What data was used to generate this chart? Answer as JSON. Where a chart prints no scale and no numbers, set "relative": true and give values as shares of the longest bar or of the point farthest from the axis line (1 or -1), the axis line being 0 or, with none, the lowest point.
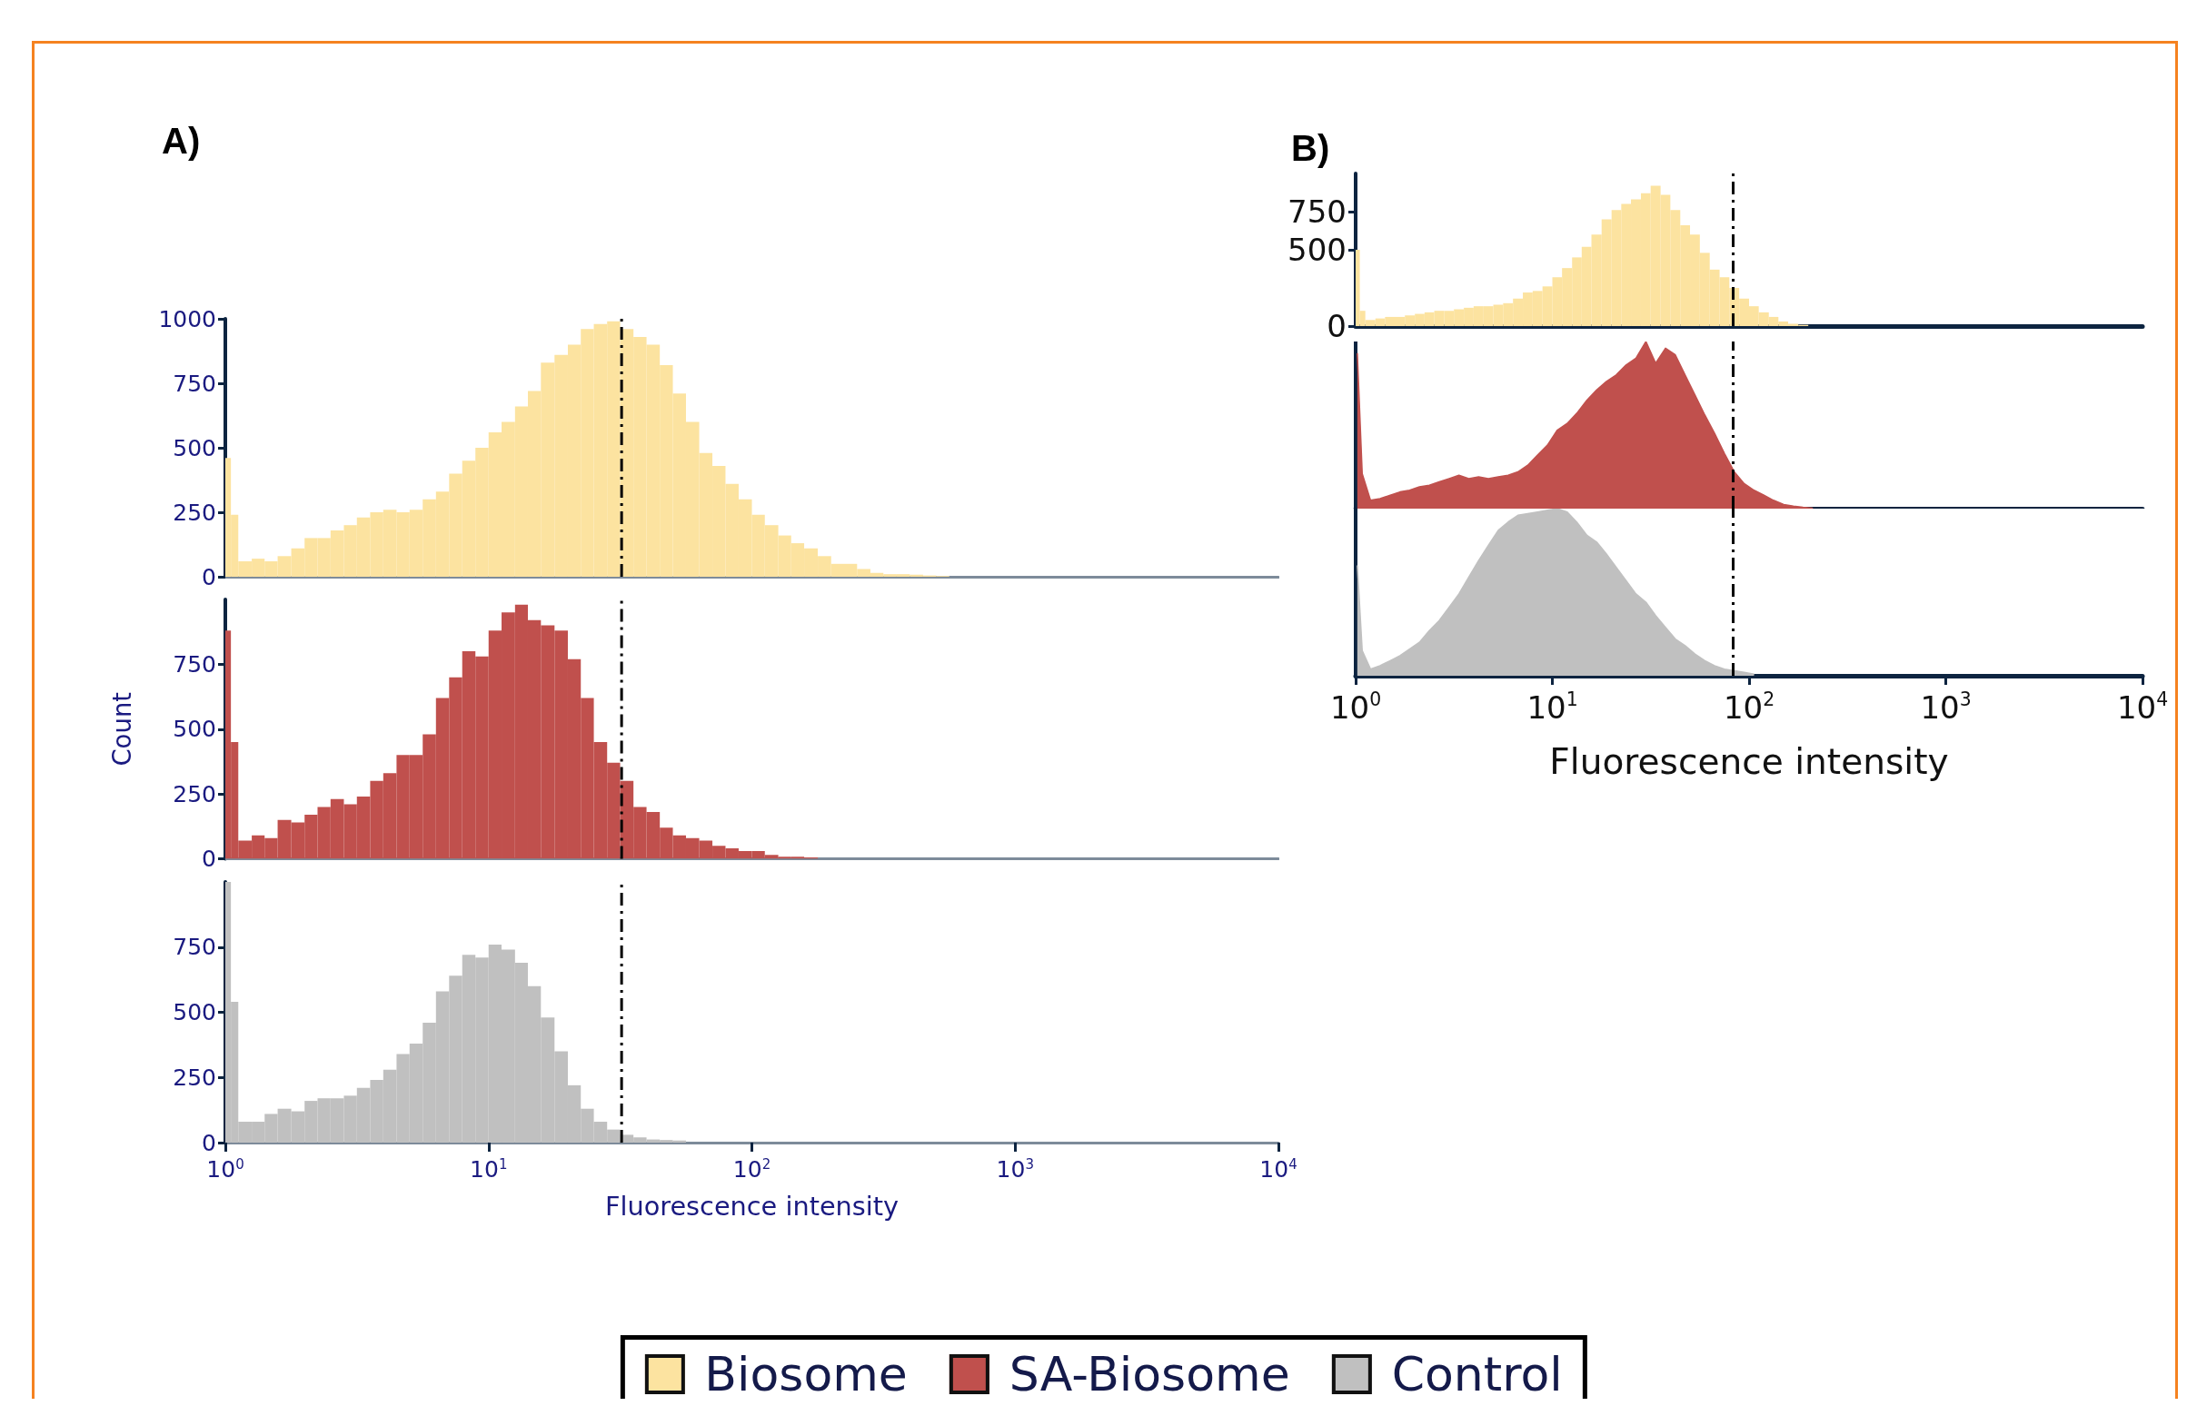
{
  "chart_data": [
    {
      "type": "histogram",
      "title": "A)",
      "log": "x",
      "grid": false,
      "legend": "bottom",
      "tick_labels": "y",
      "xlim": [
        1,
        10000
      ],
      "ylim": [
        0,
        1000
      ],
      "yticks": [
        0,
        250,
        500,
        750,
        1000
      ],
      "bins": [
        1,
        1.05,
        1.12,
        1.26,
        1.41,
        1.58,
        1.78,
        2,
        2.24,
        2.51,
        2.82,
        3.16,
        3.55,
        3.98,
        4.47,
        5.01,
        5.62,
        6.31,
        7.08,
        7.94,
        8.91,
        10,
        11.2,
        12.6,
        14.1,
        15.8,
        17.8,
        20,
        22.4,
        25.1,
        28.2,
        31.6,
        35.5,
        39.8,
        44.7,
        50.1,
        56.2,
        63.1,
        70.8,
        79.4,
        89.1,
        100,
        112,
        126,
        141,
        158,
        178,
        200,
        224,
        251,
        282,
        316,
        355,
        398,
        447,
        501,
        562
      ],
      "series": [
        {
          "name": "Biosome",
          "color": "#fce3a0",
          "values": [
            460,
            240,
            60,
            70,
            60,
            80,
            110,
            150,
            150,
            180,
            200,
            230,
            250,
            260,
            250,
            260,
            300,
            330,
            400,
            450,
            500,
            560,
            600,
            660,
            720,
            830,
            860,
            900,
            960,
            980,
            990,
            960,
            930,
            900,
            820,
            710,
            600,
            480,
            430,
            360,
            300,
            240,
            200,
            160,
            130,
            110,
            80,
            50,
            50,
            30,
            15,
            10,
            10,
            8,
            5,
            3
          ]
        }
      ],
      "ref_lines": [
        {
          "axis": "x",
          "value": 32,
          "color": "#000000",
          "line_style": "dashed"
        }
      ]
    },
    {
      "type": "histogram",
      "ylabel": "Count",
      "log": "x",
      "grid": false,
      "legend": "bottom",
      "tick_labels": "y",
      "xlim": [
        1,
        10000
      ],
      "ylim": [
        0,
        1000
      ],
      "yticks": [
        0,
        250,
        500,
        750
      ],
      "bins": [
        1,
        1.05,
        1.12,
        1.26,
        1.41,
        1.58,
        1.78,
        2,
        2.24,
        2.51,
        2.82,
        3.16,
        3.55,
        3.98,
        4.47,
        5.01,
        5.62,
        6.31,
        7.08,
        7.94,
        8.91,
        10,
        11.2,
        12.6,
        14.1,
        15.8,
        17.8,
        20,
        22.4,
        25.1,
        28.2,
        31.6,
        35.5,
        39.8,
        44.7,
        50.1,
        56.2,
        63.1,
        70.8,
        79.4,
        89.1,
        100,
        112,
        126,
        141,
        158,
        178
      ],
      "series": [
        {
          "name": "SA-Biosome",
          "color": "#c0504d",
          "values": [
            880,
            450,
            70,
            90,
            80,
            150,
            140,
            170,
            200,
            230,
            210,
            240,
            300,
            330,
            400,
            400,
            480,
            620,
            700,
            800,
            780,
            880,
            950,
            980,
            920,
            900,
            880,
            770,
            620,
            450,
            370,
            300,
            200,
            180,
            120,
            90,
            80,
            70,
            50,
            40,
            30,
            30,
            15,
            8,
            8,
            5
          ]
        }
      ],
      "ref_lines": [
        {
          "axis": "x",
          "value": 32,
          "color": "#000000",
          "line_style": "dashed"
        }
      ]
    },
    {
      "type": "histogram",
      "xlabel": "Fluorescence intensity",
      "log": "x",
      "grid": false,
      "legend": "bottom",
      "xlim": [
        1,
        10000
      ],
      "xticks": [
        {
          "value": 1,
          "label": "10$^{0}$"
        },
        {
          "value": 10,
          "label": "10$^{1}$"
        },
        {
          "value": 100,
          "label": "10$^{2}$"
        },
        {
          "value": 1000,
          "label": "10$^{3}$"
        },
        {
          "value": 10000,
          "label": "10$^{4}$"
        }
      ],
      "ylim": [
        0,
        1000
      ],
      "yticks": [
        0,
        250,
        500,
        750
      ],
      "bins": [
        1,
        1.05,
        1.12,
        1.26,
        1.41,
        1.58,
        1.78,
        2,
        2.24,
        2.51,
        2.82,
        3.16,
        3.55,
        3.98,
        4.47,
        5.01,
        5.62,
        6.31,
        7.08,
        7.94,
        8.91,
        10,
        11.2,
        12.6,
        14.1,
        15.8,
        17.8,
        20,
        22.4,
        25.1,
        28.2,
        31.6,
        35.5,
        39.8,
        44.7,
        50.1,
        56.2
      ],
      "series": [
        {
          "name": "Control",
          "color": "#c0c0c0",
          "values": [
            1000,
            540,
            80,
            80,
            110,
            130,
            120,
            160,
            170,
            170,
            180,
            210,
            240,
            280,
            340,
            380,
            460,
            580,
            640,
            720,
            710,
            760,
            740,
            690,
            600,
            480,
            350,
            220,
            130,
            80,
            50,
            30,
            20,
            12,
            10,
            8
          ]
        }
      ],
      "ref_lines": [
        {
          "axis": "x",
          "value": 32,
          "color": "#000000",
          "line_style": "dashed"
        }
      ]
    },
    {
      "type": "histogram",
      "title": "B)",
      "log": "x",
      "grid": false,
      "tick_labels": "y",
      "xlim": [
        1,
        10000
      ],
      "ylim": [
        0,
        1000
      ],
      "yticks": [
        0,
        500,
        750
      ],
      "bins": [
        1,
        1.05,
        1.12,
        1.26,
        1.41,
        1.58,
        1.78,
        2,
        2.24,
        2.51,
        2.82,
        3.16,
        3.55,
        3.98,
        4.47,
        5.01,
        5.62,
        6.31,
        7.08,
        7.94,
        8.91,
        10,
        11.2,
        12.6,
        14.1,
        15.8,
        17.8,
        20,
        22.4,
        25.1,
        28.2,
        31.6,
        35.5,
        39.8,
        44.7,
        50.1,
        56.2,
        63.1,
        70.8,
        79.4,
        89.1,
        100,
        112,
        126,
        141,
        158,
        178,
        200
      ],
      "series": [
        {
          "color": "#fce3a0",
          "values": [
            500,
            100,
            40,
            50,
            60,
            60,
            70,
            80,
            90,
            100,
            100,
            110,
            120,
            130,
            130,
            140,
            150,
            180,
            220,
            230,
            260,
            320,
            380,
            450,
            520,
            600,
            700,
            760,
            800,
            830,
            870,
            920,
            860,
            760,
            660,
            600,
            480,
            370,
            320,
            250,
            180,
            130,
            90,
            60,
            30,
            15,
            8
          ]
        }
      ],
      "ref_lines": [
        {
          "axis": "x",
          "value": 83,
          "color": "#000000",
          "line_style": "dashed"
        }
      ]
    },
    {
      "type": "area",
      "relative": true,
      "log": "x",
      "grid": false,
      "tick_labels": false,
      "xlim": [
        1,
        10000
      ],
      "x": [
        1.02,
        1.08,
        1.19,
        1.33,
        1.5,
        1.68,
        1.88,
        2.11,
        2.37,
        2.66,
        2.99,
        3.35,
        3.76,
        4.22,
        4.73,
        5.31,
        5.96,
        6.68,
        7.5,
        8.41,
        9.44,
        10.6,
        11.9,
        13.3,
        15,
        16.8,
        18.8,
        21.1,
        23.7,
        26.6,
        29.9,
        33.5,
        37.6,
        42.2,
        47.3,
        53.1,
        59.6,
        66.8,
        75,
        84.1,
        94.4,
        106,
        119,
        133,
        150,
        168,
        188,
        211
      ],
      "series": [
        {
          "color": "#c0504d",
          "values": [
            0.93,
            0.21,
            0.05,
            0.06,
            0.08,
            0.1,
            0.11,
            0.13,
            0.14,
            0.16,
            0.18,
            0.2,
            0.18,
            0.19,
            0.18,
            0.19,
            0.2,
            0.22,
            0.26,
            0.32,
            0.38,
            0.47,
            0.51,
            0.57,
            0.65,
            0.71,
            0.76,
            0.8,
            0.86,
            0.9,
            1,
            0.87,
            0.96,
            0.92,
            0.8,
            0.68,
            0.56,
            0.45,
            0.33,
            0.22,
            0.15,
            0.11,
            0.08,
            0.05,
            0.025,
            0.015,
            0.008,
            0.003
          ]
        }
      ],
      "ref_lines": [
        {
          "axis": "x",
          "value": 83,
          "color": "#000000",
          "line_style": "dashed"
        }
      ]
    },
    {
      "type": "area",
      "relative": true,
      "xlabel": "Fluorescence intensity",
      "log": "x",
      "grid": false,
      "tick_labels": "x",
      "xlim": [
        1,
        10000
      ],
      "xticks": [
        {
          "value": 1,
          "label": "10$^{0}$"
        },
        {
          "value": 10,
          "label": "10$^{1}$"
        },
        {
          "value": 100,
          "label": "10$^{2}$"
        },
        {
          "value": 1000,
          "label": "10$^{3}$"
        },
        {
          "value": 10000,
          "label": "10$^{4}$"
        }
      ],
      "x": [
        1.02,
        1.08,
        1.19,
        1.33,
        1.5,
        1.68,
        1.88,
        2.11,
        2.37,
        2.66,
        2.99,
        3.35,
        3.76,
        4.22,
        4.73,
        5.31,
        5.96,
        6.68,
        7.5,
        8.41,
        9.44,
        10.6,
        11.9,
        13.3,
        15,
        16.8,
        18.8,
        21.1,
        23.7,
        26.6,
        29.9,
        33.5,
        37.6,
        42.2,
        47.3,
        53.1,
        59.6,
        66.8,
        75,
        84.1,
        94.4,
        106
      ],
      "series": [
        {
          "color": "#c0c0c0",
          "values": [
            0.66,
            0.15,
            0.04,
            0.06,
            0.09,
            0.12,
            0.16,
            0.2,
            0.27,
            0.33,
            0.41,
            0.49,
            0.59,
            0.69,
            0.78,
            0.87,
            0.92,
            0.96,
            0.97,
            0.98,
            0.99,
            1,
            0.98,
            0.92,
            0.84,
            0.8,
            0.73,
            0.65,
            0.57,
            0.49,
            0.44,
            0.36,
            0.29,
            0.22,
            0.18,
            0.13,
            0.09,
            0.06,
            0.04,
            0.03,
            0.02,
            0.01
          ]
        }
      ],
      "ref_lines": [
        {
          "axis": "x",
          "value": 83,
          "color": "#000000",
          "line_style": "dashed"
        }
      ]
    }
  ]
}
